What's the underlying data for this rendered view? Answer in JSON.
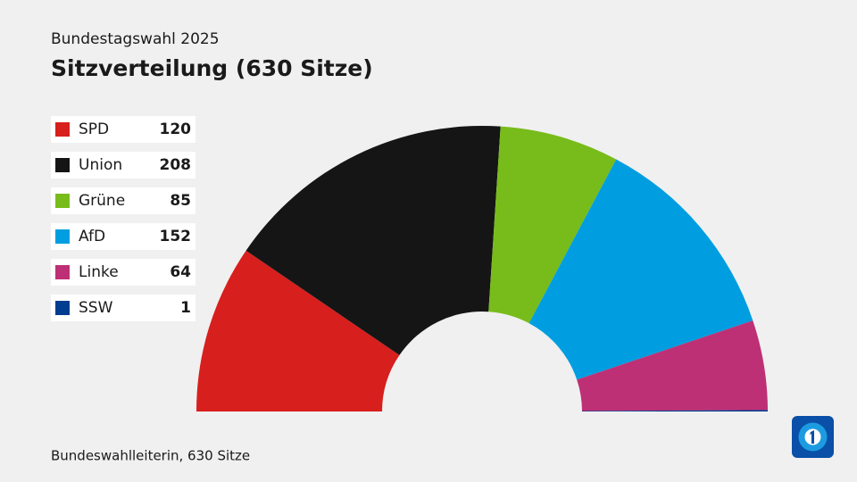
{
  "chart_data": {
    "type": "parliament",
    "subtitle": "Bundestagswahl 2025",
    "title": "Sitzverteilung (630 Sitze)",
    "source": "Bundeswahlleiterin, 630 Sitze",
    "categories": [
      "SPD",
      "Union",
      "Grüne",
      "AfD",
      "Linke",
      "SSW"
    ],
    "values": [
      120,
      208,
      85,
      152,
      64,
      1
    ],
    "colors": [
      "#d71f1d",
      "#151515",
      "#78bc1b",
      "#009ee0",
      "#be3075",
      "#003c8f"
    ]
  }
}
